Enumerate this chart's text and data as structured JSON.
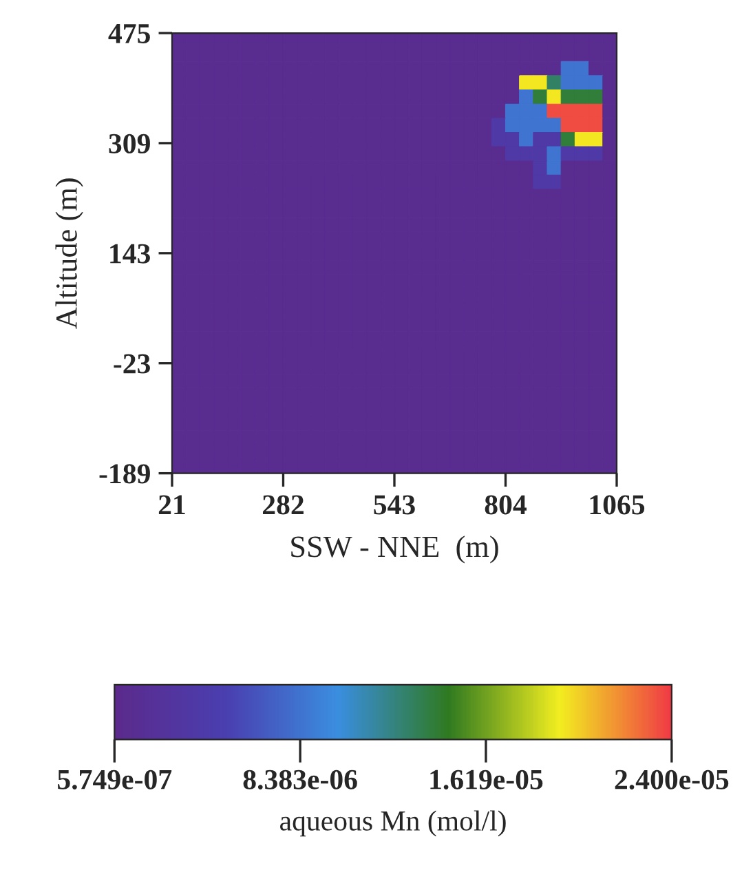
{
  "chart_data": {
    "type": "heatmap",
    "xlabel": "SSW - NNE  (m)",
    "ylabel": "Altitude (m)",
    "clabel": "aqueous Mn (mol/l)",
    "xlim": [
      21,
      1065
    ],
    "ylim": [
      -189,
      475
    ],
    "xticks": [
      21,
      282,
      543,
      804,
      1065
    ],
    "yticks": [
      -189,
      -23,
      143,
      309,
      475
    ],
    "clim": [
      5.749e-07,
      2.4e-05
    ],
    "cticks": [
      {
        "value": 5.749e-07,
        "label": "5.749e-07"
      },
      {
        "value": 8.383e-06,
        "label": "8.383e-06"
      },
      {
        "value": 1.619e-05,
        "label": "1.619e-05"
      },
      {
        "value": 2.4e-05,
        "label": "2.400e-05"
      }
    ],
    "cells": [
      [
        1.2e-06,
        1.2e-06,
        1.2e-06,
        1.2e-06,
        1.2e-06,
        1.2e-06,
        1.2e-06,
        1.2e-06,
        1.2e-06,
        1.2e-06,
        1.2e-06,
        1.2e-06,
        1.2e-06,
        1.2e-06,
        1.2e-06,
        1.2e-06,
        1.2e-06,
        1.2e-06,
        1.2e-06,
        1.2e-06,
        1.2e-06,
        1.2e-06,
        1.2e-06,
        1.2e-06,
        1.2e-06,
        1.2e-06,
        1.2e-06,
        1.2e-06,
        1.2e-06,
        1.2e-06,
        1.2e-06,
        1.2e-06
      ],
      [
        1.2e-06,
        1.2e-06,
        1.2e-06,
        1.2e-06,
        1.2e-06,
        1.2e-06,
        1.2e-06,
        1.2e-06,
        1.2e-06,
        1.2e-06,
        1.2e-06,
        1.2e-06,
        1.2e-06,
        1.2e-06,
        1.2e-06,
        1.2e-06,
        1.2e-06,
        1.2e-06,
        1.2e-06,
        1.2e-06,
        1.2e-06,
        1.2e-06,
        1.2e-06,
        1.2e-06,
        1.2e-06,
        1.2e-06,
        1.2e-06,
        1.2e-06,
        1.2e-06,
        1.2e-06,
        1.2e-06,
        1.2e-06
      ],
      [
        1.2e-06,
        1.2e-06,
        1.2e-06,
        1.2e-06,
        1.2e-06,
        1.2e-06,
        1.2e-06,
        1.2e-06,
        1.2e-06,
        1.2e-06,
        1.2e-06,
        1.2e-06,
        1.2e-06,
        1.2e-06,
        1.2e-06,
        1.2e-06,
        1.2e-06,
        1.2e-06,
        1.2e-06,
        1.2e-06,
        1.2e-06,
        1.2e-06,
        1.2e-06,
        1.2e-06,
        1.2e-06,
        1.2e-06,
        1.2e-06,
        1.2e-06,
        8.4e-06,
        8.4e-06,
        1.2e-06,
        1.2e-06
      ],
      [
        1.2e-06,
        1.2e-06,
        1.2e-06,
        1.2e-06,
        1.2e-06,
        1.2e-06,
        1.2e-06,
        1.2e-06,
        1.2e-06,
        1.2e-06,
        1.2e-06,
        1.2e-06,
        1.2e-06,
        1.2e-06,
        1.2e-06,
        1.2e-06,
        1.2e-06,
        1.2e-06,
        1.2e-06,
        1.2e-06,
        1.2e-06,
        1.2e-06,
        1.2e-06,
        1.2e-06,
        1.2e-06,
        1.95e-05,
        1.95e-05,
        1.3e-05,
        8.4e-06,
        8.4e-06,
        8.4e-06,
        1.2e-06
      ],
      [
        1.2e-06,
        1.2e-06,
        1.2e-06,
        1.2e-06,
        1.2e-06,
        1.2e-06,
        1.2e-06,
        1.2e-06,
        1.2e-06,
        1.2e-06,
        1.2e-06,
        1.2e-06,
        1.2e-06,
        1.2e-06,
        1.2e-06,
        1.2e-06,
        1.2e-06,
        1.2e-06,
        1.2e-06,
        1.2e-06,
        1.2e-06,
        1.2e-06,
        1.2e-06,
        1.2e-06,
        1.2e-06,
        8.4e-06,
        1.4e-05,
        1.95e-05,
        1.4e-05,
        1.4e-05,
        1.4e-05,
        1.2e-06
      ],
      [
        1.2e-06,
        1.2e-06,
        1.2e-06,
        1.2e-06,
        1.2e-06,
        1.2e-06,
        1.2e-06,
        1.2e-06,
        1.2e-06,
        1.2e-06,
        1.2e-06,
        1.2e-06,
        1.2e-06,
        1.2e-06,
        1.2e-06,
        1.2e-06,
        1.2e-06,
        1.2e-06,
        1.2e-06,
        1.2e-06,
        1.2e-06,
        1.2e-06,
        1.2e-06,
        1.2e-06,
        8.4e-06,
        8.4e-06,
        8.4e-06,
        2.35e-05,
        2.35e-05,
        2.35e-05,
        2.35e-05,
        1.2e-06
      ],
      [
        1.2e-06,
        1.2e-06,
        1.2e-06,
        1.2e-06,
        1.2e-06,
        1.2e-06,
        1.2e-06,
        1.2e-06,
        1.2e-06,
        1.2e-06,
        1.2e-06,
        1.2e-06,
        1.2e-06,
        1.2e-06,
        1.2e-06,
        1.2e-06,
        1.2e-06,
        1.2e-06,
        1.2e-06,
        1.2e-06,
        1.2e-06,
        1.2e-06,
        1.2e-06,
        4e-06,
        8.4e-06,
        8.4e-06,
        8.4e-06,
        8.4e-06,
        2.35e-05,
        2.35e-05,
        2.35e-05,
        1.2e-06
      ],
      [
        1.2e-06,
        1.2e-06,
        1.2e-06,
        1.2e-06,
        1.2e-06,
        1.2e-06,
        1.2e-06,
        1.2e-06,
        1.2e-06,
        1.2e-06,
        1.2e-06,
        1.2e-06,
        1.2e-06,
        1.2e-06,
        1.2e-06,
        1.2e-06,
        1.2e-06,
        1.2e-06,
        1.2e-06,
        1.2e-06,
        1.2e-06,
        1.2e-06,
        1.2e-06,
        4e-06,
        4e-06,
        8.4e-06,
        4e-06,
        4e-06,
        1.4e-05,
        1.95e-05,
        1.95e-05,
        1.2e-06
      ],
      [
        1.2e-06,
        1.2e-06,
        1.2e-06,
        1.2e-06,
        1.2e-06,
        1.2e-06,
        1.2e-06,
        1.2e-06,
        1.2e-06,
        1.2e-06,
        1.2e-06,
        1.2e-06,
        1.2e-06,
        1.2e-06,
        1.2e-06,
        1.2e-06,
        1.2e-06,
        1.2e-06,
        1.2e-06,
        1.2e-06,
        1.2e-06,
        1.2e-06,
        1.2e-06,
        1.2e-06,
        4e-06,
        4e-06,
        4e-06,
        8.4e-06,
        4e-06,
        4e-06,
        4e-06,
        1.2e-06
      ],
      [
        1.2e-06,
        1.2e-06,
        1.2e-06,
        1.2e-06,
        1.2e-06,
        1.2e-06,
        1.2e-06,
        1.2e-06,
        1.2e-06,
        1.2e-06,
        1.2e-06,
        1.2e-06,
        1.2e-06,
        1.2e-06,
        1.2e-06,
        1.2e-06,
        1.2e-06,
        1.2e-06,
        1.2e-06,
        1.2e-06,
        1.2e-06,
        1.2e-06,
        1.2e-06,
        1.2e-06,
        1.2e-06,
        1.2e-06,
        4e-06,
        8.4e-06,
        1.2e-06,
        1.2e-06,
        1.2e-06,
        1.2e-06
      ],
      [
        1.2e-06,
        1.2e-06,
        1.2e-06,
        1.2e-06,
        1.2e-06,
        1.2e-06,
        1.2e-06,
        1.2e-06,
        1.2e-06,
        1.2e-06,
        1.2e-06,
        1.2e-06,
        1.2e-06,
        1.2e-06,
        1.2e-06,
        1.2e-06,
        1.2e-06,
        1.2e-06,
        1.2e-06,
        1.2e-06,
        1.2e-06,
        1.2e-06,
        1.2e-06,
        1.2e-06,
        1.2e-06,
        1.2e-06,
        4e-06,
        4e-06,
        1.2e-06,
        1.2e-06,
        1.2e-06,
        1.2e-06
      ],
      [
        1.2e-06,
        1.2e-06,
        1.2e-06,
        1.2e-06,
        1.2e-06,
        1.2e-06,
        1.2e-06,
        1.2e-06,
        1.2e-06,
        1.2e-06,
        1.2e-06,
        1.2e-06,
        1.2e-06,
        1.2e-06,
        1.2e-06,
        1.2e-06,
        1.2e-06,
        1.2e-06,
        1.2e-06,
        1.2e-06,
        1.2e-06,
        1.2e-06,
        1.2e-06,
        1.2e-06,
        1.2e-06,
        1.2e-06,
        1.2e-06,
        1.2e-06,
        1.2e-06,
        1.2e-06,
        1.2e-06,
        1.2e-06
      ],
      [
        1.2e-06,
        1.2e-06,
        1.2e-06,
        1.2e-06,
        1.2e-06,
        1.2e-06,
        1.2e-06,
        1.2e-06,
        1.2e-06,
        1.2e-06,
        1.2e-06,
        1.2e-06,
        1.2e-06,
        1.2e-06,
        1.2e-06,
        1.2e-06,
        1.2e-06,
        1.2e-06,
        1.2e-06,
        1.2e-06,
        1.2e-06,
        1.2e-06,
        1.2e-06,
        1.2e-06,
        1.2e-06,
        1.2e-06,
        1.2e-06,
        1.2e-06,
        1.2e-06,
        1.2e-06,
        1.2e-06,
        1.2e-06
      ],
      [
        1.2e-06,
        1.2e-06,
        1.2e-06,
        1.2e-06,
        1.2e-06,
        1.2e-06,
        1.2e-06,
        1.2e-06,
        1.2e-06,
        1.2e-06,
        1.2e-06,
        1.2e-06,
        1.2e-06,
        1.2e-06,
        1.2e-06,
        1.2e-06,
        1.2e-06,
        1.2e-06,
        1.2e-06,
        1.2e-06,
        1.2e-06,
        1.2e-06,
        1.2e-06,
        1.2e-06,
        1.2e-06,
        1.2e-06,
        1.2e-06,
        1.2e-06,
        1.2e-06,
        1.2e-06,
        1.2e-06,
        1.2e-06
      ],
      [
        1.2e-06,
        1.2e-06,
        1.2e-06,
        1.2e-06,
        1.2e-06,
        1.2e-06,
        1.2e-06,
        1.2e-06,
        1.2e-06,
        1.2e-06,
        1.2e-06,
        1.2e-06,
        1.2e-06,
        1.2e-06,
        1.2e-06,
        1.2e-06,
        1.2e-06,
        1.2e-06,
        1.2e-06,
        1.2e-06,
        1.2e-06,
        1.2e-06,
        1.2e-06,
        1.2e-06,
        1.2e-06,
        1.2e-06,
        1.2e-06,
        1.2e-06,
        1.2e-06,
        1.2e-06,
        1.2e-06,
        1.2e-06
      ],
      [
        1.2e-06,
        1.2e-06,
        1.2e-06,
        1.2e-06,
        1.2e-06,
        1.2e-06,
        1.2e-06,
        1.2e-06,
        1.2e-06,
        1.2e-06,
        1.2e-06,
        1.2e-06,
        1.2e-06,
        1.2e-06,
        1.2e-06,
        1.2e-06,
        1.2e-06,
        1.2e-06,
        1.2e-06,
        1.2e-06,
        1.2e-06,
        1.2e-06,
        1.2e-06,
        1.2e-06,
        1.2e-06,
        1.2e-06,
        1.2e-06,
        1.2e-06,
        1.2e-06,
        1.2e-06,
        1.2e-06,
        1.2e-06
      ],
      [
        1.2e-06,
        1.2e-06,
        1.2e-06,
        1.2e-06,
        1.2e-06,
        1.2e-06,
        1.2e-06,
        1.2e-06,
        1.2e-06,
        1.2e-06,
        1.2e-06,
        1.2e-06,
        1.2e-06,
        1.2e-06,
        1.2e-06,
        1.2e-06,
        1.2e-06,
        1.2e-06,
        1.2e-06,
        1.2e-06,
        1.2e-06,
        1.2e-06,
        1.2e-06,
        1.2e-06,
        1.2e-06,
        1.2e-06,
        1.2e-06,
        1.2e-06,
        1.2e-06,
        1.2e-06,
        1.2e-06,
        1.2e-06
      ],
      [
        1.2e-06,
        1.2e-06,
        1.2e-06,
        1.2e-06,
        1.2e-06,
        1.2e-06,
        1.2e-06,
        1.2e-06,
        1.2e-06,
        1.2e-06,
        1.2e-06,
        1.2e-06,
        1.2e-06,
        1.2e-06,
        1.2e-06,
        1.2e-06,
        1.2e-06,
        1.2e-06,
        1.2e-06,
        1.2e-06,
        1.2e-06,
        1.2e-06,
        1.2e-06,
        1.2e-06,
        1.2e-06,
        1.2e-06,
        1.2e-06,
        1.2e-06,
        1.2e-06,
        1.2e-06,
        1.2e-06,
        1.2e-06
      ],
      [
        1.2e-06,
        1.2e-06,
        1.2e-06,
        1.2e-06,
        1.2e-06,
        1.2e-06,
        1.2e-06,
        1.2e-06,
        1.2e-06,
        1.2e-06,
        1.2e-06,
        1.2e-06,
        1.2e-06,
        1.2e-06,
        1.2e-06,
        1.2e-06,
        1.2e-06,
        1.2e-06,
        1.2e-06,
        1.2e-06,
        1.2e-06,
        1.2e-06,
        1.2e-06,
        1.2e-06,
        1.2e-06,
        1.2e-06,
        1.2e-06,
        1.2e-06,
        1.2e-06,
        1.2e-06,
        1.2e-06,
        1.2e-06
      ],
      [
        1.2e-06,
        1.2e-06,
        1.2e-06,
        1.2e-06,
        1.2e-06,
        1.2e-06,
        1.2e-06,
        1.2e-06,
        1.2e-06,
        1.2e-06,
        1.2e-06,
        1.2e-06,
        1.2e-06,
        1.2e-06,
        1.2e-06,
        1.2e-06,
        1.2e-06,
        1.2e-06,
        1.2e-06,
        1.2e-06,
        1.2e-06,
        1.2e-06,
        1.2e-06,
        1.2e-06,
        1.2e-06,
        1.2e-06,
        1.2e-06,
        1.2e-06,
        1.2e-06,
        1.2e-06,
        1.2e-06,
        1.2e-06
      ],
      [
        1.2e-06,
        1.2e-06,
        1.2e-06,
        1.2e-06,
        1.2e-06,
        1.2e-06,
        1.2e-06,
        1.2e-06,
        1.2e-06,
        1.2e-06,
        1.2e-06,
        1.2e-06,
        1.2e-06,
        1.2e-06,
        1.2e-06,
        1.2e-06,
        1.2e-06,
        1.2e-06,
        1.2e-06,
        1.2e-06,
        1.2e-06,
        1.2e-06,
        1.2e-06,
        1.2e-06,
        1.2e-06,
        1.2e-06,
        1.2e-06,
        1.2e-06,
        1.2e-06,
        1.2e-06,
        1.2e-06,
        1.2e-06
      ],
      [
        1.2e-06,
        1.2e-06,
        1.2e-06,
        1.2e-06,
        1.2e-06,
        1.2e-06,
        1.2e-06,
        1.2e-06,
        1.2e-06,
        1.2e-06,
        1.2e-06,
        1.2e-06,
        1.2e-06,
        1.2e-06,
        1.2e-06,
        1.2e-06,
        1.2e-06,
        1.2e-06,
        1.2e-06,
        1.2e-06,
        1.2e-06,
        1.2e-06,
        1.2e-06,
        1.2e-06,
        1.2e-06,
        1.2e-06,
        1.2e-06,
        1.2e-06,
        1.2e-06,
        1.2e-06,
        1.2e-06,
        1.2e-06
      ],
      [
        1.2e-06,
        1.2e-06,
        1.2e-06,
        1.2e-06,
        1.2e-06,
        1.2e-06,
        1.2e-06,
        1.2e-06,
        1.2e-06,
        1.2e-06,
        1.2e-06,
        1.2e-06,
        1.2e-06,
        1.2e-06,
        1.2e-06,
        1.2e-06,
        1.2e-06,
        1.2e-06,
        1.2e-06,
        1.2e-06,
        1.2e-06,
        1.2e-06,
        1.2e-06,
        1.2e-06,
        1.2e-06,
        1.2e-06,
        1.2e-06,
        1.2e-06,
        1.2e-06,
        1.2e-06,
        1.2e-06,
        1.2e-06
      ],
      [
        1.2e-06,
        1.2e-06,
        1.2e-06,
        1.2e-06,
        1.2e-06,
        1.2e-06,
        1.2e-06,
        1.2e-06,
        1.2e-06,
        1.2e-06,
        1.2e-06,
        1.2e-06,
        1.2e-06,
        1.2e-06,
        1.2e-06,
        1.2e-06,
        1.2e-06,
        1.2e-06,
        1.2e-06,
        1.2e-06,
        1.2e-06,
        1.2e-06,
        1.2e-06,
        1.2e-06,
        1.2e-06,
        1.2e-06,
        1.2e-06,
        1.2e-06,
        1.2e-06,
        1.2e-06,
        1.2e-06,
        1.2e-06
      ],
      [
        1.2e-06,
        1.2e-06,
        1.2e-06,
        1.2e-06,
        1.2e-06,
        1.2e-06,
        1.2e-06,
        1.2e-06,
        1.2e-06,
        1.2e-06,
        1.2e-06,
        1.2e-06,
        1.2e-06,
        1.2e-06,
        1.2e-06,
        1.2e-06,
        1.2e-06,
        1.2e-06,
        1.2e-06,
        1.2e-06,
        1.2e-06,
        1.2e-06,
        1.2e-06,
        1.2e-06,
        1.2e-06,
        1.2e-06,
        1.2e-06,
        1.2e-06,
        1.2e-06,
        1.2e-06,
        1.2e-06,
        1.2e-06
      ],
      [
        1.2e-06,
        1.2e-06,
        1.2e-06,
        1.2e-06,
        1.2e-06,
        1.2e-06,
        1.2e-06,
        1.2e-06,
        1.2e-06,
        1.2e-06,
        1.2e-06,
        1.2e-06,
        1.2e-06,
        1.2e-06,
        1.2e-06,
        1.2e-06,
        1.2e-06,
        1.2e-06,
        1.2e-06,
        1.2e-06,
        1.2e-06,
        1.2e-06,
        1.2e-06,
        1.2e-06,
        1.2e-06,
        1.2e-06,
        1.2e-06,
        1.2e-06,
        1.2e-06,
        1.2e-06,
        1.2e-06,
        1.2e-06
      ],
      [
        1.2e-06,
        1.2e-06,
        1.2e-06,
        1.2e-06,
        1.2e-06,
        1.2e-06,
        1.2e-06,
        1.2e-06,
        1.2e-06,
        1.2e-06,
        1.2e-06,
        1.2e-06,
        1.2e-06,
        1.2e-06,
        1.2e-06,
        1.2e-06,
        1.2e-06,
        1.2e-06,
        1.2e-06,
        1.2e-06,
        1.2e-06,
        1.2e-06,
        1.2e-06,
        1.2e-06,
        1.2e-06,
        1.2e-06,
        1.2e-06,
        1.2e-06,
        1.2e-06,
        1.2e-06,
        1.2e-06,
        1.2e-06
      ],
      [
        1.2e-06,
        1.2e-06,
        1.2e-06,
        1.2e-06,
        1.2e-06,
        1.2e-06,
        1.2e-06,
        1.2e-06,
        1.2e-06,
        1.2e-06,
        1.2e-06,
        1.2e-06,
        1.2e-06,
        1.2e-06,
        1.2e-06,
        1.2e-06,
        1.2e-06,
        1.2e-06,
        1.2e-06,
        1.2e-06,
        1.2e-06,
        1.2e-06,
        1.2e-06,
        1.2e-06,
        1.2e-06,
        1.2e-06,
        1.2e-06,
        1.2e-06,
        1.2e-06,
        1.2e-06,
        1.2e-06,
        1.2e-06
      ],
      [
        1.2e-06,
        1.2e-06,
        1.2e-06,
        1.2e-06,
        1.2e-06,
        1.2e-06,
        1.2e-06,
        1.2e-06,
        1.2e-06,
        1.2e-06,
        1.2e-06,
        1.2e-06,
        1.2e-06,
        1.2e-06,
        1.2e-06,
        1.2e-06,
        1.2e-06,
        1.2e-06,
        1.2e-06,
        1.2e-06,
        1.2e-06,
        1.2e-06,
        1.2e-06,
        1.2e-06,
        1.2e-06,
        1.2e-06,
        1.2e-06,
        1.2e-06,
        1.2e-06,
        1.2e-06,
        1.2e-06,
        1.2e-06
      ],
      [
        1.2e-06,
        1.2e-06,
        1.2e-06,
        1.2e-06,
        1.2e-06,
        1.2e-06,
        1.2e-06,
        1.2e-06,
        1.2e-06,
        1.2e-06,
        1.2e-06,
        1.2e-06,
        1.2e-06,
        1.2e-06,
        1.2e-06,
        1.2e-06,
        1.2e-06,
        1.2e-06,
        1.2e-06,
        1.2e-06,
        1.2e-06,
        1.2e-06,
        1.2e-06,
        1.2e-06,
        1.2e-06,
        1.2e-06,
        1.2e-06,
        1.2e-06,
        1.2e-06,
        1.2e-06,
        1.2e-06,
        1.2e-06
      ],
      [
        1.2e-06,
        1.2e-06,
        1.2e-06,
        1.2e-06,
        1.2e-06,
        1.2e-06,
        1.2e-06,
        1.2e-06,
        1.2e-06,
        1.2e-06,
        1.2e-06,
        1.2e-06,
        1.2e-06,
        1.2e-06,
        1.2e-06,
        1.2e-06,
        1.2e-06,
        1.2e-06,
        1.2e-06,
        1.2e-06,
        1.2e-06,
        1.2e-06,
        1.2e-06,
        1.2e-06,
        1.2e-06,
        1.2e-06,
        1.2e-06,
        1.2e-06,
        1.2e-06,
        1.2e-06,
        1.2e-06,
        1.2e-06
      ]
    ]
  }
}
